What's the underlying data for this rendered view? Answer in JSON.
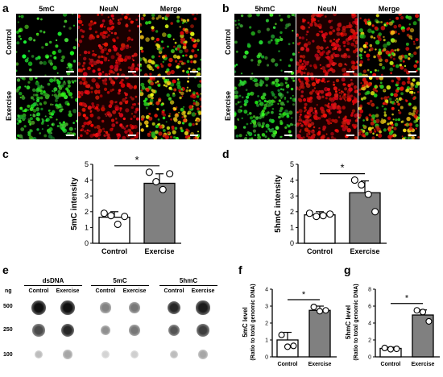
{
  "panels": {
    "a": {
      "label": "a",
      "columns": [
        "5mC",
        "NeuN",
        "Merge"
      ],
      "rows": [
        "Control",
        "Exercise"
      ]
    },
    "b": {
      "label": "b",
      "columns": [
        "5hmC",
        "NeuN",
        "Merge"
      ],
      "rows": [
        "Control",
        "Exercise"
      ]
    },
    "c": {
      "label": "c"
    },
    "d": {
      "label": "d"
    },
    "e": {
      "label": "e",
      "groups": [
        "dsDNA",
        "5mC",
        "5hmC"
      ],
      "sub_columns": [
        "Control",
        "Exercise"
      ],
      "ng_header": "ng",
      "amounts": [
        "500",
        "250",
        "100"
      ]
    },
    "f": {
      "label": "f"
    },
    "g": {
      "label": "g"
    }
  },
  "chart_data": [
    {
      "id": "c",
      "type": "bar",
      "categories": [
        "Control",
        "Exercise"
      ],
      "values": [
        1.65,
        3.8
      ],
      "errors": [
        0.35,
        0.6
      ],
      "points": [
        [
          1.9,
          1.75,
          1.2,
          1.7
        ],
        [
          4.5,
          3.9,
          3.4,
          4.4
        ]
      ],
      "ylabel": "5mC intensity",
      "ylim": [
        0,
        5
      ],
      "yticks": [
        "0",
        "1",
        "2",
        "3",
        "4",
        "5"
      ],
      "significance": "*",
      "colors": [
        "#ffffff",
        "#808080"
      ]
    },
    {
      "id": "d",
      "type": "bar",
      "categories": [
        "Control",
        "Exercise"
      ],
      "values": [
        1.8,
        3.2
      ],
      "errors": [
        0.2,
        0.75
      ],
      "points": [
        [
          1.9,
          1.7,
          1.75,
          1.85
        ],
        [
          4.0,
          3.7,
          3.1,
          2.0
        ]
      ],
      "ylabel": "5hmC intensity",
      "ylim": [
        0,
        5
      ],
      "yticks": [
        "0",
        "1",
        "2",
        "3",
        "4",
        "5"
      ],
      "significance": "*",
      "colors": [
        "#ffffff",
        "#808080"
      ]
    },
    {
      "id": "f",
      "type": "bar",
      "categories": [
        "Control",
        "Exercise"
      ],
      "values": [
        1.0,
        2.75
      ],
      "errors": [
        0.45,
        0.25
      ],
      "points": [
        [
          1.3,
          0.6,
          0.65
        ],
        [
          2.95,
          2.7,
          2.75
        ]
      ],
      "ylabel": "5mC level",
      "ylabel2": "(Ratio to total genomic DNA)",
      "ylim": [
        0,
        4
      ],
      "yticks": [
        "0",
        "1",
        "2",
        "3",
        "4"
      ],
      "significance": "*",
      "colors": [
        "#ffffff",
        "#808080"
      ]
    },
    {
      "id": "g",
      "type": "bar",
      "categories": [
        "Control",
        "Exercise"
      ],
      "values": [
        1.0,
        4.95
      ],
      "errors": [
        0.15,
        0.6
      ],
      "points": [
        [
          1.05,
          0.9,
          0.95
        ],
        [
          5.5,
          5.3,
          4.2
        ]
      ],
      "ylabel": "5hmC level",
      "ylabel2": "(Ratio to total genomic DNA)",
      "ylim": [
        0,
        8
      ],
      "yticks": [
        "0",
        "2",
        "4",
        "6",
        "8"
      ],
      "significance": "*",
      "colors": [
        "#ffffff",
        "#808080"
      ]
    }
  ],
  "blots": {
    "dsDNA": {
      "Control": [
        0.95,
        0.7,
        0.2
      ],
      "Exercise": [
        0.95,
        0.85,
        0.3
      ]
    },
    "5mC": {
      "Control": [
        0.45,
        0.4,
        0.1
      ],
      "Exercise": [
        0.5,
        0.5,
        0.12
      ]
    },
    "5hmC": {
      "Control": [
        0.85,
        0.65,
        0.2
      ],
      "Exercise": [
        0.9,
        0.75,
        0.3
      ]
    }
  }
}
